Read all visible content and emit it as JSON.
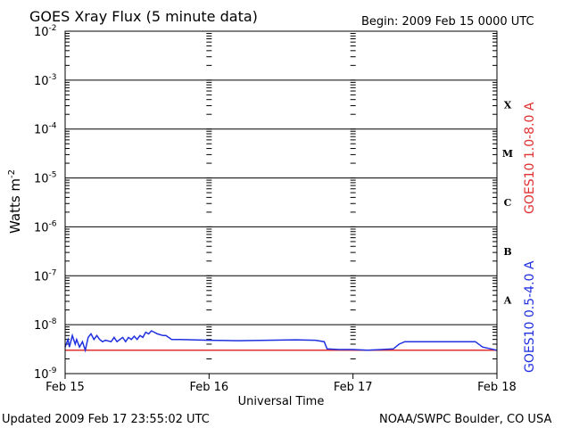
{
  "chart_data": {
    "type": "line",
    "title": "GOES Xray Flux (5 minute data)",
    "begin_label": "Begin:  2009 Feb 15 0000 UTC",
    "xlabel": "Universal Time",
    "ylabel_main": "Watts m",
    "ylabel_exp": "-2",
    "y_scale": "log",
    "ylim": [
      1e-09,
      0.01
    ],
    "y_ticks": [
      {
        "base": "10",
        "exp": "-2"
      },
      {
        "base": "10",
        "exp": "-3"
      },
      {
        "base": "10",
        "exp": "-4"
      },
      {
        "base": "10",
        "exp": "-5"
      },
      {
        "base": "10",
        "exp": "-6"
      },
      {
        "base": "10",
        "exp": "-7"
      },
      {
        "base": "10",
        "exp": "-8"
      },
      {
        "base": "10",
        "exp": "-9"
      }
    ],
    "x_ticks": [
      "Feb 15",
      "Feb 16",
      "Feb 17",
      "Feb 18"
    ],
    "xlim_days": [
      0,
      3
    ],
    "flare_classes": [
      {
        "label": "X",
        "value": 0.000316
      },
      {
        "label": "M",
        "value": 3.16e-05
      },
      {
        "label": "C",
        "value": 3.16e-06
      },
      {
        "label": "B",
        "value": 3.16e-07
      },
      {
        "label": "A",
        "value": 3.16e-08
      }
    ],
    "grid": true,
    "series": [
      {
        "name": "GOES10 1.0-8.0 A",
        "color": "#e03030",
        "points": [
          [
            0.0,
            3e-09
          ],
          [
            3.0,
            3e-09
          ]
        ]
      },
      {
        "name": "GOES10 0.5-4.0 A",
        "color": "#2030e0",
        "points": [
          [
            0.0,
            3.5e-09
          ],
          [
            0.02,
            5e-09
          ],
          [
            0.03,
            3.5e-09
          ],
          [
            0.05,
            6e-09
          ],
          [
            0.07,
            4e-09
          ],
          [
            0.08,
            5e-09
          ],
          [
            0.1,
            3.5e-09
          ],
          [
            0.12,
            4.5e-09
          ],
          [
            0.14,
            3e-09
          ],
          [
            0.16,
            5.5e-09
          ],
          [
            0.18,
            6.5e-09
          ],
          [
            0.2,
            5e-09
          ],
          [
            0.22,
            6e-09
          ],
          [
            0.24,
            5e-09
          ],
          [
            0.26,
            4.5e-09
          ],
          [
            0.28,
            4.8e-09
          ],
          [
            0.32,
            4.5e-09
          ],
          [
            0.34,
            5.5e-09
          ],
          [
            0.36,
            4.5e-09
          ],
          [
            0.4,
            5.5e-09
          ],
          [
            0.42,
            4.5e-09
          ],
          [
            0.44,
            5.5e-09
          ],
          [
            0.46,
            5e-09
          ],
          [
            0.48,
            5.8e-09
          ],
          [
            0.5,
            5e-09
          ],
          [
            0.52,
            6e-09
          ],
          [
            0.54,
            5.5e-09
          ],
          [
            0.56,
            7e-09
          ],
          [
            0.58,
            6.5e-09
          ],
          [
            0.6,
            7.5e-09
          ],
          [
            0.64,
            6.5e-09
          ],
          [
            0.68,
            6e-09
          ],
          [
            0.7,
            6e-09
          ],
          [
            0.74,
            5e-09
          ],
          [
            0.8,
            5e-09
          ],
          [
            1.0,
            4.8e-09
          ],
          [
            1.2,
            4.7e-09
          ],
          [
            1.4,
            4.8e-09
          ],
          [
            1.6,
            4.9e-09
          ],
          [
            1.74,
            4.8e-09
          ],
          [
            1.8,
            4.5e-09
          ],
          [
            1.82,
            3.2e-09
          ],
          [
            1.9,
            3.1e-09
          ],
          [
            2.0,
            3.1e-09
          ],
          [
            2.1,
            3e-09
          ],
          [
            2.2,
            3.1e-09
          ],
          [
            2.28,
            3.2e-09
          ],
          [
            2.32,
            4e-09
          ],
          [
            2.36,
            4.5e-09
          ],
          [
            2.5,
            4.5e-09
          ],
          [
            2.72,
            4.5e-09
          ],
          [
            2.85,
            4.5e-09
          ],
          [
            2.9,
            3.5e-09
          ],
          [
            3.0,
            3e-09
          ]
        ]
      }
    ]
  },
  "footer": {
    "updated": "Updated 2009 Feb 17 23:55:02 UTC",
    "source": "NOAA/SWPC Boulder, CO USA"
  }
}
